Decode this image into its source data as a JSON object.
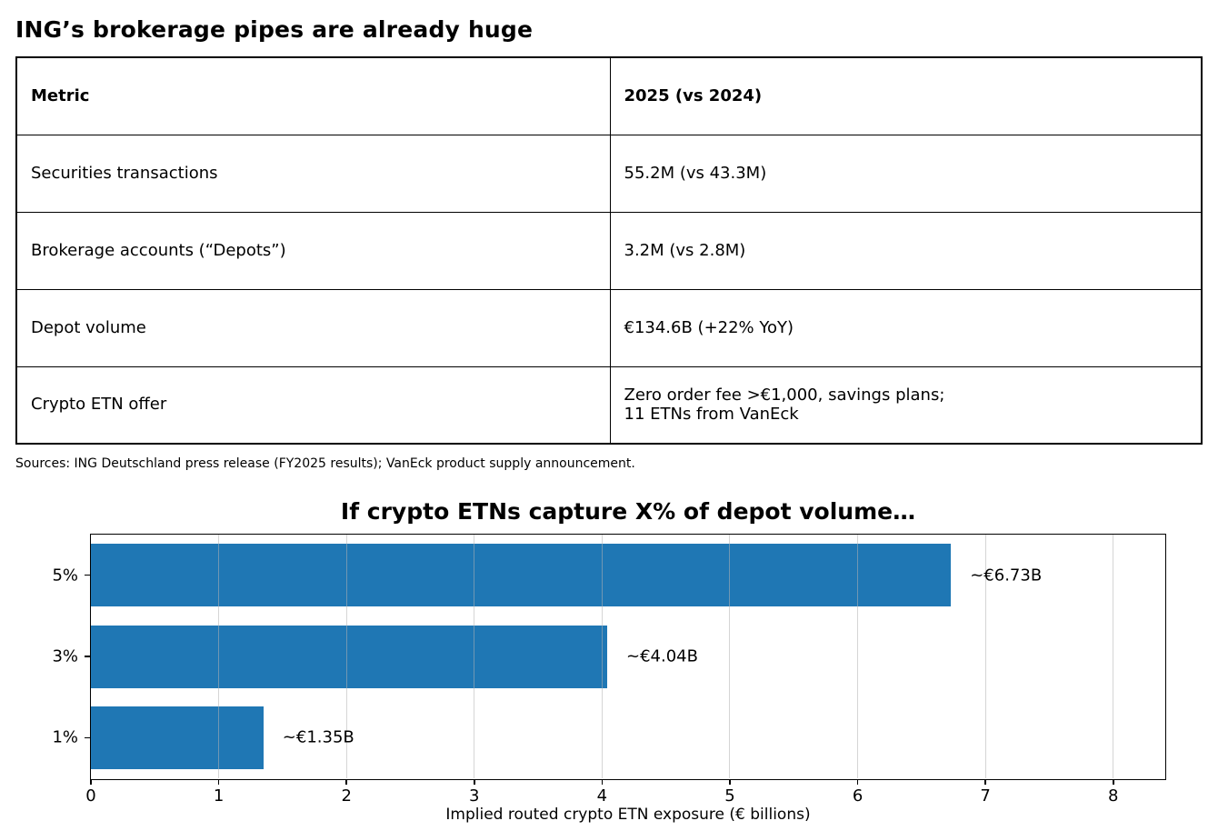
{
  "page": {
    "title": "ING’s brokerage pipes are already huge",
    "sources": "Sources: ING Deutschland press release (FY2025 results); VanEck product supply announcement."
  },
  "table": {
    "headers": [
      "Metric",
      "2025 (vs 2024)"
    ],
    "rows": [
      {
        "metric": "Securities transactions",
        "value": "55.2M (vs 43.3M)"
      },
      {
        "metric": "Brokerage accounts (“Depots”)",
        "value": "3.2M (vs 2.8M)"
      },
      {
        "metric": "Depot volume",
        "value": "€134.6B (+22% YoY)"
      },
      {
        "metric": "Crypto ETN offer",
        "value": "Zero order fee >€1,000, savings plans;\n11 ETNs from VanEck"
      }
    ]
  },
  "chart_data": {
    "type": "bar",
    "orientation": "horizontal",
    "title": "If crypto ETNs capture X% of depot volume…",
    "categories": [
      "5%",
      "3%",
      "1%"
    ],
    "values": [
      6.73,
      4.04,
      1.35
    ],
    "bar_labels": [
      "~€6.73B",
      "~€4.04B",
      "~€1.35B"
    ],
    "xlabel": "Implied routed crypto ETN exposure (€ billions)",
    "x_ticks": [
      0,
      1,
      2,
      3,
      4,
      5,
      6,
      7,
      8
    ],
    "xlim": [
      0,
      8.4
    ],
    "bar_color": "#1f77b4",
    "grid": "vertical-light",
    "legend": "none"
  }
}
